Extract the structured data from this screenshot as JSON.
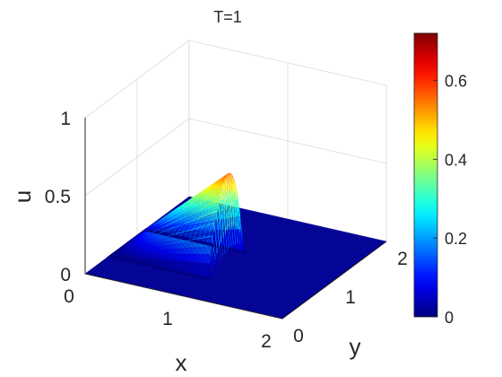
{
  "chart_data": {
    "type": "surface",
    "title": "T=1",
    "xlabel": "x",
    "ylabel": "y",
    "zlabel": "u",
    "xlim": [
      0,
      2
    ],
    "ylim": [
      0,
      2
    ],
    "zlim": [
      0,
      1
    ],
    "x_ticks": [
      "0",
      "1",
      "2"
    ],
    "y_ticks": [
      "0",
      "1",
      "2"
    ],
    "z_ticks": [
      "0",
      "0.5",
      "1"
    ],
    "colorbar": {
      "colormap": "jet",
      "limits": [
        0,
        0.72
      ],
      "ticks": [
        "0",
        "0.2",
        "0.4",
        "0.6"
      ],
      "tick_values": [
        0,
        0.2,
        0.4,
        0.6
      ]
    },
    "peak": {
      "x": 1.0,
      "y": 0.82,
      "u": 0.72
    },
    "shape": "wedge rising linearly in x from 0 at x=0 to about 0.72 at x=1, sharp front near x=1, support roughly 0.5 <= y <= 1.1, zero elsewhere",
    "grid": true
  },
  "colors": {
    "background": "#ffffff",
    "grid": "#d9d9d9",
    "axis": "#262626",
    "mesh_low": "#00008f"
  }
}
